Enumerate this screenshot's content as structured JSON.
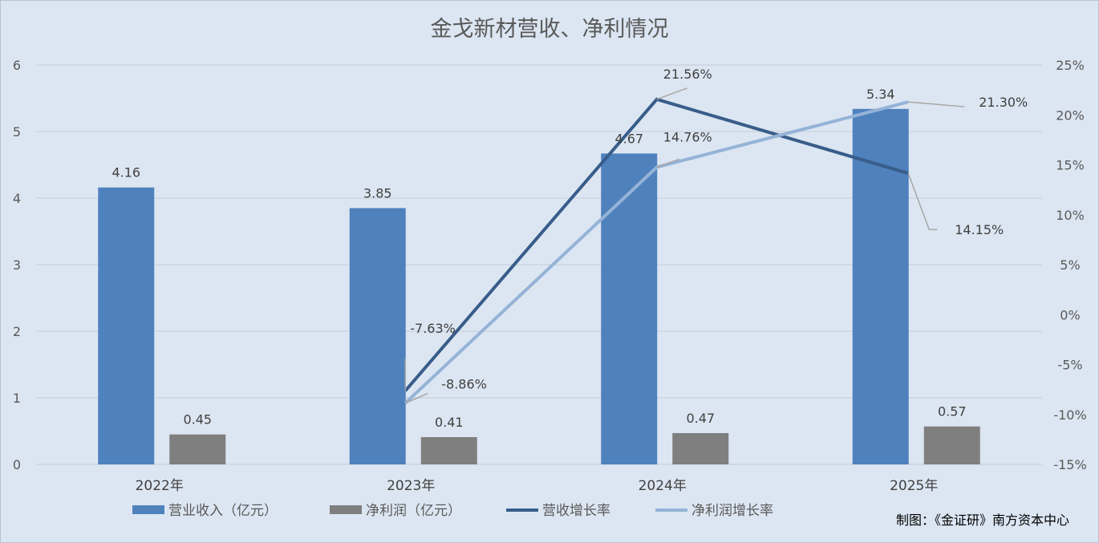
{
  "chart_data": {
    "type": "bar",
    "title": "金戈新材营收、净利情况",
    "categories": [
      "2022年",
      "2023年",
      "2024年",
      "2025年"
    ],
    "series": [
      {
        "name": "营业收入（亿元）",
        "kind": "bar",
        "axis": "left",
        "color": "#4f81bd",
        "values": [
          4.16,
          3.85,
          4.67,
          5.34
        ],
        "labels": [
          "4.16",
          "3.85",
          "4.67",
          "5.34"
        ]
      },
      {
        "name": "净利润（亿元）",
        "kind": "bar",
        "axis": "left",
        "color": "#7f7f7f",
        "values": [
          0.45,
          0.41,
          0.47,
          0.57
        ],
        "labels": [
          "0.45",
          "0.41",
          "0.47",
          "0.57"
        ]
      },
      {
        "name": "营收增长率",
        "kind": "line",
        "axis": "right",
        "color": "#385d8a",
        "values": [
          null,
          -7.63,
          21.56,
          14.15
        ],
        "labels": [
          "",
          "-7.63%",
          "21.56%",
          "14.15%"
        ]
      },
      {
        "name": "净利润增长率",
        "kind": "line",
        "axis": "right",
        "color": "#95b3d7",
        "values": [
          null,
          -8.86,
          14.76,
          21.3
        ],
        "labels": [
          "",
          "-8.86%",
          "14.76%",
          "21.30%"
        ]
      }
    ],
    "ylim_left": [
      0,
      6
    ],
    "yticks_left": [
      "0",
      "1",
      "2",
      "3",
      "4",
      "5",
      "6"
    ],
    "ylim_right": [
      -15,
      25
    ],
    "yticks_right": [
      "-15%",
      "-10%",
      "-5%",
      "0%",
      "5%",
      "10%",
      "15%",
      "20%",
      "25%"
    ],
    "grid": true,
    "legend_position": "bottom"
  },
  "source_note": "制图：《金证研》南方资本中心"
}
